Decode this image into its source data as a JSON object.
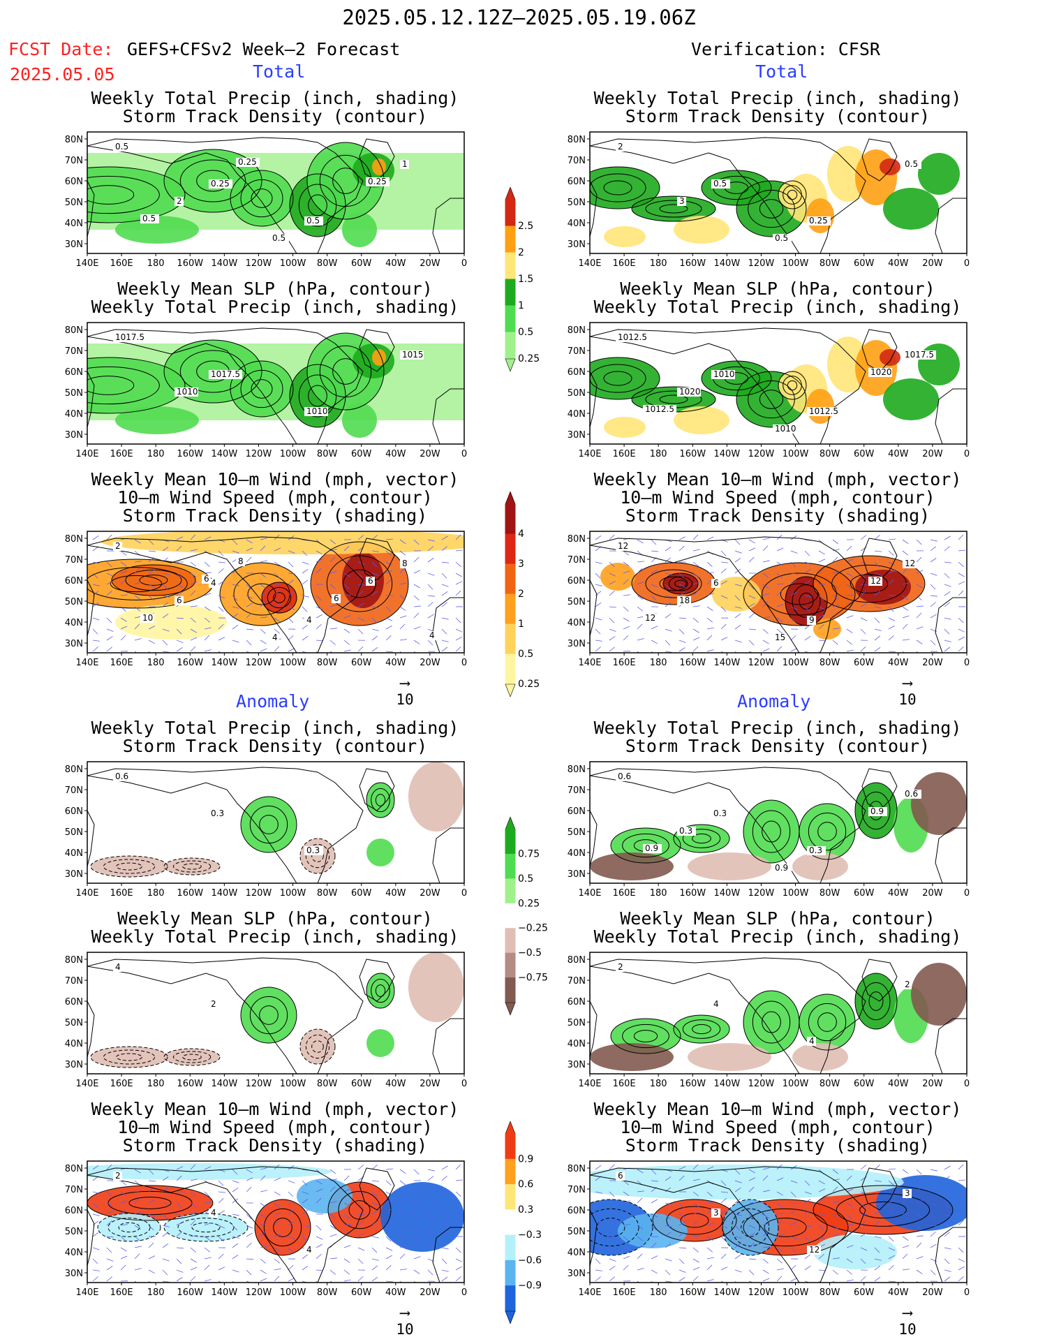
{
  "header": {
    "title": "2025.05.12.12Z—2025.05.19.06Z",
    "fcst_prefix": "FCST Date:",
    "fcst_model": "GEFS+CFSv2 Week—2 Forecast",
    "fcst_date": "2025.05.05",
    "verification": "Verification: CFSR"
  },
  "sections": {
    "total": "Total",
    "anomaly": "Anomaly"
  },
  "panel_titles": {
    "precip_storm": [
      "Weekly Total Precip (inch, shading)",
      "Storm Track Density (contour)"
    ],
    "slp_precip": [
      "Weekly Mean SLP (hPa, contour)",
      "Weekly Total Precip (inch, shading)"
    ],
    "wind_storm": [
      "Weekly Mean 10—m Wind (mph, vector)",
      "10—m Wind Speed (mph, contour)",
      "Storm Track Density (shading)"
    ]
  },
  "axes": {
    "lon_labels": [
      "140E",
      "160E",
      "180",
      "160W",
      "140W",
      "120W",
      "100W",
      "80W",
      "60W",
      "40W",
      "20W",
      "0"
    ],
    "lat_labels": [
      "80N",
      "70N",
      "60N",
      "50N",
      "40N",
      "30N"
    ]
  },
  "vector_ref": "10",
  "colorbars": {
    "total_precip": {
      "labels": [
        "2.5",
        "2",
        "1.5",
        "1",
        "0.5",
        "0.25"
      ],
      "colors": [
        "#d22814",
        "#ffa014",
        "#ffe678",
        "#1eaa1e",
        "#50dc50",
        "#a0f08c"
      ]
    },
    "total_storm": {
      "labels": [
        "4",
        "3",
        "2",
        "1",
        "0.5",
        "0.25"
      ],
      "colors": [
        "#a01414",
        "#dc2814",
        "#f06414",
        "#ffa01e",
        "#ffd25a",
        "#fff5a0"
      ]
    },
    "anom_precip": {
      "labels": [
        "0.75",
        "0.5",
        "0.25",
        "−0.25",
        "−0.5",
        "−0.75"
      ],
      "colors": [
        "#1eaa1e",
        "#50dc50",
        "#a0f08c",
        "#ffffff",
        "#e0beb4",
        "#b48c82",
        "#825a50"
      ]
    },
    "anom_storm": {
      "labels": [
        "0.9",
        "0.6",
        "0.3",
        "−0.3",
        "−0.6",
        "−0.9"
      ],
      "colors": [
        "#f03c14",
        "#ffa01e",
        "#ffe678",
        "#ffffff",
        "#b4f0fa",
        "#5ab4f0",
        "#1e64dc"
      ]
    }
  },
  "contour_labels": {
    "p1": [
      "0.5",
      "0.25",
      "0.5",
      "1",
      "2",
      "0.5",
      "0.25",
      "0.5",
      "0.25"
    ],
    "p2": [
      "1017.5",
      "1017.5",
      "1010",
      "1015",
      "1010"
    ],
    "p3": [
      "2",
      "4",
      "4",
      "8",
      "6",
      "4",
      "6",
      "10",
      "8",
      "6",
      "4",
      "6"
    ],
    "p4": [
      "0.6",
      "0.3",
      "0.3"
    ],
    "p5": [
      "4",
      "2"
    ],
    "p6": [
      "2",
      "4",
      "4"
    ],
    "v1": [
      "2",
      "0.5",
      "0.25",
      "0.5",
      "3",
      "0.5"
    ],
    "v2": [
      "1012.5",
      "1010",
      "1012.5",
      "1017.5",
      "1020",
      "1010",
      "1020",
      "1012.5"
    ],
    "v3": [
      "12",
      "6",
      "9",
      "12",
      "18",
      "15",
      "12",
      "12"
    ],
    "v4": [
      "0.6",
      "0.3",
      "0.3",
      "0.6",
      "0.3",
      "0.9",
      "0.9",
      "0.9"
    ],
    "v5": [
      "2",
      "4",
      "4",
      "2"
    ],
    "v6": [
      "6",
      "3",
      "12",
      "3"
    ]
  }
}
